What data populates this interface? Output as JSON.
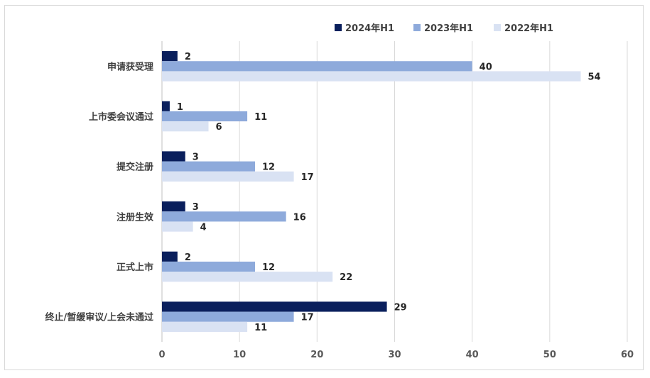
{
  "chart_data": {
    "type": "bar",
    "orientation": "horizontal",
    "categories": [
      "申请获受理",
      "上市委会议通过",
      "提交注册",
      "注册生效",
      "正式上市",
      "终止/暂缓审议/上会未通过"
    ],
    "series": [
      {
        "name": "2024年H1",
        "color": "#0a1f5c",
        "values": [
          2,
          1,
          3,
          3,
          2,
          29
        ]
      },
      {
        "name": "2023年H1",
        "color": "#8eaadb",
        "values": [
          40,
          11,
          12,
          16,
          12,
          17
        ]
      },
      {
        "name": "2022年H1",
        "color": "#d9e2f3",
        "values": [
          54,
          6,
          17,
          4,
          22,
          11
        ]
      }
    ],
    "xlim": [
      0,
      60
    ],
    "xticks": [
      0,
      10,
      20,
      30,
      40,
      50,
      60
    ],
    "grid": "vertical",
    "legend": "top-right",
    "title": "",
    "xlabel": "",
    "ylabel": ""
  }
}
